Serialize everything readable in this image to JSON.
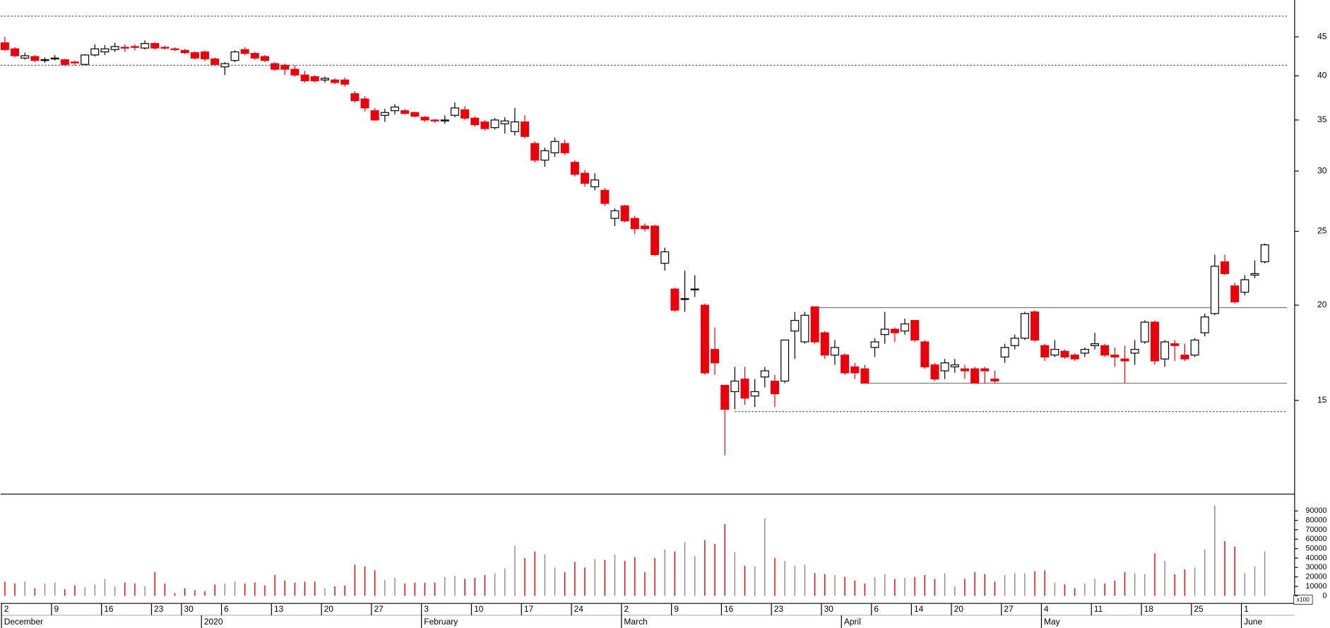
{
  "chart_data": {
    "type": "candlestick",
    "yscale": "log",
    "ylim": [
      11.3,
      50.3
    ],
    "yticks": [
      15,
      20,
      25,
      30,
      35,
      40,
      45
    ],
    "up_color": "#ffffff",
    "down_color": "#e8000b",
    "candles": [
      [
        44.2,
        45.0,
        43.1,
        43.3
      ],
      [
        43.4,
        43.6,
        42.3,
        42.5
      ],
      [
        42.2,
        42.9,
        42.0,
        42.5
      ],
      [
        42.4,
        42.6,
        41.7,
        41.9
      ],
      [
        41.9,
        42.3,
        41.6,
        42.0
      ],
      [
        42.2,
        42.6,
        41.9,
        42.2
      ],
      [
        42.0,
        42.1,
        41.2,
        41.4
      ],
      [
        41.7,
        41.9,
        41.3,
        41.6
      ],
      [
        41.4,
        42.7,
        41.3,
        42.6
      ],
      [
        42.6,
        44.0,
        42.4,
        43.4
      ],
      [
        43.0,
        43.9,
        42.6,
        43.4
      ],
      [
        43.3,
        44.2,
        43.0,
        43.7
      ],
      [
        43.6,
        44.0,
        43.0,
        43.5
      ],
      [
        43.7,
        44.0,
        43.2,
        43.6
      ],
      [
        43.5,
        44.5,
        43.3,
        44.1
      ],
      [
        44.1,
        44.3,
        43.3,
        43.5
      ],
      [
        43.6,
        43.8,
        43.3,
        43.5
      ],
      [
        43.4,
        43.6,
        43.1,
        43.3
      ],
      [
        43.2,
        43.4,
        42.7,
        42.9
      ],
      [
        42.9,
        43.1,
        42.0,
        42.2
      ],
      [
        43.0,
        43.2,
        41.8,
        42.1
      ],
      [
        42.1,
        42.3,
        41.2,
        41.4
      ],
      [
        41.1,
        41.7,
        40.1,
        41.5
      ],
      [
        41.9,
        43.2,
        41.7,
        43.0
      ],
      [
        43.3,
        43.6,
        42.6,
        42.8
      ],
      [
        42.8,
        43.0,
        42.0,
        42.2
      ],
      [
        42.4,
        42.6,
        41.7,
        41.9
      ],
      [
        41.5,
        41.7,
        40.6,
        40.8
      ],
      [
        41.3,
        41.5,
        40.1,
        40.8
      ],
      [
        40.8,
        41.3,
        39.9,
        40.1
      ],
      [
        40.1,
        40.6,
        39.2,
        39.4
      ],
      [
        39.9,
        40.1,
        39.2,
        39.4
      ],
      [
        39.5,
        39.9,
        39.2,
        39.7
      ],
      [
        39.5,
        39.7,
        39.0,
        39.2
      ],
      [
        39.5,
        39.8,
        38.7,
        39.0
      ],
      [
        37.9,
        38.2,
        36.9,
        37.1
      ],
      [
        37.3,
        37.6,
        35.9,
        36.3
      ],
      [
        36.0,
        36.3,
        34.9,
        35.0
      ],
      [
        35.5,
        36.2,
        34.8,
        35.8
      ],
      [
        36.0,
        36.7,
        35.6,
        36.4
      ],
      [
        36.0,
        36.2,
        35.6,
        35.7
      ],
      [
        35.8,
        35.9,
        35.3,
        35.4
      ],
      [
        35.3,
        35.4,
        34.8,
        35.0
      ],
      [
        35.0,
        35.1,
        34.7,
        34.9
      ],
      [
        34.9,
        35.5,
        34.6,
        35.0
      ],
      [
        35.5,
        36.9,
        35.3,
        36.3
      ],
      [
        36.1,
        36.5,
        35.0,
        35.2
      ],
      [
        35.2,
        35.4,
        34.3,
        34.5
      ],
      [
        34.8,
        35.0,
        33.9,
        34.1
      ],
      [
        34.2,
        35.2,
        34.0,
        35.0
      ],
      [
        34.6,
        35.3,
        33.6,
        34.9
      ],
      [
        33.8,
        36.3,
        33.4,
        34.8
      ],
      [
        34.8,
        35.5,
        33.1,
        33.3
      ],
      [
        32.6,
        32.8,
        30.8,
        31.0
      ],
      [
        31.0,
        32.2,
        30.4,
        31.9
      ],
      [
        31.7,
        33.2,
        31.3,
        32.8
      ],
      [
        32.6,
        33.0,
        31.5,
        31.7
      ],
      [
        30.8,
        31.0,
        29.5,
        29.7
      ],
      [
        29.8,
        30.1,
        28.6,
        28.9
      ],
      [
        28.6,
        29.8,
        28.3,
        29.2
      ],
      [
        28.3,
        28.5,
        27.0,
        27.2
      ],
      [
        26.0,
        26.8,
        25.4,
        26.6
      ],
      [
        27.0,
        27.1,
        25.7,
        25.8
      ],
      [
        26.0,
        26.2,
        24.8,
        25.2
      ],
      [
        25.4,
        25.6,
        25.0,
        25.2
      ],
      [
        25.4,
        25.5,
        23.2,
        23.3
      ],
      [
        22.7,
        23.8,
        22.2,
        23.5
      ],
      [
        21.0,
        21.1,
        19.6,
        19.7
      ],
      [
        20.4,
        22.2,
        19.6,
        20.4
      ],
      [
        21.0,
        21.9,
        20.5,
        21.0
      ],
      [
        20.0,
        20.1,
        16.2,
        16.3
      ],
      [
        17.5,
        18.7,
        16.2,
        16.8
      ],
      [
        15.7,
        15.7,
        12.7,
        14.6
      ],
      [
        15.4,
        16.6,
        14.6,
        15.9
      ],
      [
        16.0,
        16.6,
        14.8,
        15.1
      ],
      [
        15.2,
        16.0,
        14.7,
        15.4
      ],
      [
        16.1,
        16.6,
        15.6,
        16.4
      ],
      [
        15.9,
        16.2,
        14.7,
        15.3
      ],
      [
        15.9,
        18.0,
        15.8,
        18.0
      ],
      [
        18.5,
        19.6,
        17.0,
        19.1
      ],
      [
        17.9,
        19.6,
        17.8,
        19.4
      ],
      [
        19.9,
        19.9,
        17.8,
        17.9
      ],
      [
        18.4,
        18.5,
        17.0,
        17.2
      ],
      [
        17.2,
        18.0,
        16.7,
        17.6
      ],
      [
        17.2,
        17.3,
        16.2,
        16.3
      ],
      [
        16.6,
        16.8,
        16.0,
        16.3
      ],
      [
        16.5,
        16.7,
        15.8,
        15.8
      ],
      [
        17.6,
        18.1,
        17.1,
        17.9
      ],
      [
        18.3,
        19.6,
        17.8,
        18.6
      ],
      [
        18.6,
        18.7,
        17.9,
        18.4
      ],
      [
        18.5,
        19.2,
        18.3,
        18.9
      ],
      [
        19.1,
        19.1,
        17.9,
        18.0
      ],
      [
        17.9,
        18.0,
        16.5,
        16.6
      ],
      [
        16.7,
        16.8,
        15.9,
        16.0
      ],
      [
        16.4,
        17.0,
        16.0,
        16.8
      ],
      [
        16.6,
        17.0,
        16.3,
        16.7
      ],
      [
        16.5,
        16.7,
        16.0,
        16.4
      ],
      [
        16.5,
        16.6,
        15.8,
        15.8
      ],
      [
        16.5,
        16.6,
        15.8,
        16.4
      ],
      [
        16.0,
        16.4,
        15.8,
        15.9
      ],
      [
        17.1,
        17.8,
        16.8,
        17.6
      ],
      [
        17.7,
        18.3,
        17.5,
        18.1
      ],
      [
        18.1,
        19.6,
        18.0,
        19.5
      ],
      [
        19.6,
        19.7,
        17.9,
        18.0
      ],
      [
        17.7,
        17.8,
        16.9,
        17.1
      ],
      [
        17.2,
        18.0,
        17.1,
        17.5
      ],
      [
        17.4,
        17.5,
        17.0,
        17.1
      ],
      [
        17.2,
        17.3,
        16.9,
        17.0
      ],
      [
        17.3,
        17.6,
        17.1,
        17.5
      ],
      [
        17.7,
        18.4,
        17.5,
        17.8
      ],
      [
        17.7,
        17.8,
        17.1,
        17.2
      ],
      [
        17.2,
        17.6,
        16.6,
        17.1
      ],
      [
        17.0,
        17.7,
        15.8,
        16.9
      ],
      [
        17.3,
        18.0,
        16.7,
        17.5
      ],
      [
        17.9,
        19.1,
        17.8,
        19.0
      ],
      [
        19.0,
        19.1,
        16.7,
        16.9
      ],
      [
        17.0,
        18.0,
        16.6,
        17.9
      ],
      [
        17.8,
        18.0,
        16.9,
        17.7
      ],
      [
        17.2,
        17.8,
        16.9,
        17.0
      ],
      [
        17.2,
        18.1,
        17.1,
        18.0
      ],
      [
        18.4,
        19.5,
        18.2,
        19.3
      ],
      [
        19.5,
        23.3,
        19.4,
        22.5
      ],
      [
        22.8,
        23.3,
        21.9,
        22.0
      ],
      [
        21.2,
        21.4,
        20.1,
        20.2
      ],
      [
        20.8,
        21.9,
        20.6,
        21.6
      ],
      [
        21.9,
        22.9,
        21.7,
        22.0
      ],
      [
        22.8,
        24.1,
        22.7,
        24.0
      ]
    ],
    "levels": [
      {
        "value": 47.9,
        "start": 0,
        "style": "dotted"
      },
      {
        "value": 41.3,
        "start": 0,
        "style": "dotted"
      },
      {
        "value": 19.85,
        "start": 81,
        "style": "solid"
      },
      {
        "value": 15.8,
        "start": 86,
        "style": "solid"
      },
      {
        "value": 14.5,
        "start": 73,
        "style": "dotted"
      }
    ],
    "xticks": [
      {
        "value": 0,
        "label": "2"
      },
      {
        "value": 5,
        "label": "9"
      },
      {
        "value": 10,
        "label": "16"
      },
      {
        "value": 15,
        "label": "23"
      },
      {
        "value": 18,
        "label": "30"
      },
      {
        "value": 22,
        "label": "6"
      },
      {
        "value": 27,
        "label": "13"
      },
      {
        "value": 32,
        "label": "20"
      },
      {
        "value": 37,
        "label": "27"
      },
      {
        "value": 42,
        "label": "3"
      },
      {
        "value": 47,
        "label": "10"
      },
      {
        "value": 52,
        "label": "17"
      },
      {
        "value": 57,
        "label": "24"
      },
      {
        "value": 62,
        "label": "2"
      },
      {
        "value": 67,
        "label": "9"
      },
      {
        "value": 72,
        "label": "16"
      },
      {
        "value": 77,
        "label": "23"
      },
      {
        "value": 82,
        "label": "30"
      },
      {
        "value": 87,
        "label": "6"
      },
      {
        "value": 91,
        "label": "14"
      },
      {
        "value": 95,
        "label": "20"
      },
      {
        "value": 100,
        "label": "27"
      },
      {
        "value": 104,
        "label": "4"
      },
      {
        "value": 109,
        "label": "11"
      },
      {
        "value": 114,
        "label": "18"
      },
      {
        "value": 119,
        "label": "25"
      },
      {
        "value": 124,
        "label": "1"
      }
    ],
    "month_ticks": [
      {
        "value": 0,
        "label": "December"
      },
      {
        "value": 20,
        "label": "2020"
      },
      {
        "value": 42,
        "label": "February"
      },
      {
        "value": 62,
        "label": "March"
      },
      {
        "value": 84,
        "label": "April"
      },
      {
        "value": 104,
        "label": "May"
      },
      {
        "value": 124,
        "label": "June"
      }
    ],
    "volume": {
      "unit_label": "x100",
      "ylim": [
        0,
        106000
      ],
      "yticks": [
        0,
        10000,
        20000,
        30000,
        40000,
        50000,
        60000,
        70000,
        80000,
        90000
      ],
      "up_color": "#8c8c8c",
      "down_color": "#e8000b",
      "values": [
        15000,
        13000,
        15000,
        8000,
        13000,
        14000,
        7000,
        11000,
        9000,
        12000,
        18000,
        10000,
        14000,
        13000,
        10000,
        25000,
        13000,
        3000,
        8000,
        6000,
        5000,
        12000,
        13000,
        15000,
        13000,
        14000,
        11000,
        22000,
        16000,
        14000,
        15000,
        15000,
        8000,
        10000,
        11000,
        33000,
        31000,
        27000,
        17000,
        19000,
        13000,
        14000,
        14000,
        14000,
        20000,
        21000,
        18000,
        19000,
        22000,
        24000,
        29000,
        53000,
        40000,
        47000,
        44000,
        30000,
        25000,
        36000,
        30000,
        39000,
        38000,
        44000,
        37000,
        41000,
        25000,
        40000,
        49000,
        47000,
        57000,
        42000,
        59000,
        55000,
        76000,
        46000,
        32000,
        31000,
        82000,
        40000,
        37000,
        32000,
        33000,
        24000,
        23000,
        22000,
        20000,
        16000,
        13000,
        20000,
        23000,
        18000,
        19000,
        20000,
        22000,
        18000,
        24000,
        10000,
        18000,
        25000,
        23000,
        15000,
        22000,
        24000,
        24000,
        26000,
        27000,
        14000,
        12000,
        8000,
        13000,
        18000,
        13000,
        16000,
        25000,
        24000,
        23000,
        45000,
        37000,
        23000,
        28000,
        30000,
        49000,
        96000,
        58000,
        52000,
        24000,
        31000,
        47000
      ]
    }
  }
}
